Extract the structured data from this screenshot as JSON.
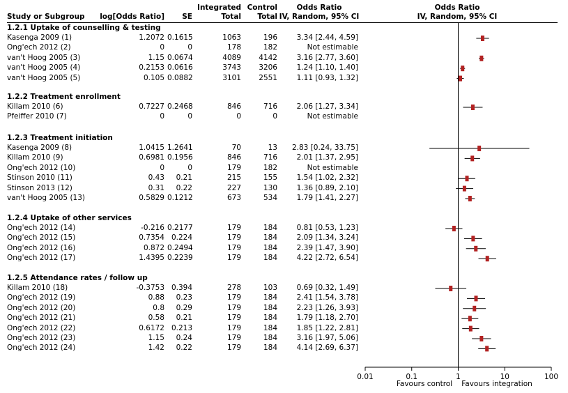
{
  "chart_data": {
    "type": "forest",
    "columns": {
      "study": "Study or Subgroup",
      "log_or": "log[Odds Ratio]",
      "se": "SE",
      "int_header": "Integrated",
      "int_total": "Total",
      "ctrl_header": "Control",
      "ctrl_total": "Total",
      "or_header": "Odds Ratio",
      "or_sub": "IV, Random, 95% CI",
      "plot_header": "Odds Ratio",
      "plot_sub": "IV, Random, 95% CI"
    },
    "axis": {
      "scale": "log",
      "min": 0.01,
      "max": 100,
      "ticks": [
        0.01,
        0.1,
        1,
        10,
        100
      ],
      "tick_labels": [
        "0.01",
        "0.1",
        "1",
        "10",
        "100"
      ],
      "left_label": "Favours control",
      "right_label": "Favours integration"
    },
    "groups": [
      {
        "title": "1.2.1 Uptake of counselling & testing",
        "studies": [
          {
            "study": "Kasenga 2009 (1)",
            "log_or": "1.2072",
            "se": "0.1615",
            "int_total": "1063",
            "ctrl_total": "196",
            "ci_text": "3.34 [2.44, 4.59]",
            "or": 3.34,
            "lo": 2.44,
            "hi": 4.59
          },
          {
            "study": "Ong'ech 2012 (2)",
            "log_or": "0",
            "se": "0",
            "int_total": "178",
            "ctrl_total": "182",
            "ci_text": "Not estimable",
            "or": null,
            "lo": null,
            "hi": null
          },
          {
            "study": "van't Hoog 2005 (3)",
            "log_or": "1.15",
            "se": "0.0674",
            "int_total": "4089",
            "ctrl_total": "4142",
            "ci_text": "3.16 [2.77, 3.60]",
            "or": 3.16,
            "lo": 2.77,
            "hi": 3.6
          },
          {
            "study": "van't Hoog 2005 (4)",
            "log_or": "0.2153",
            "se": "0.0616",
            "int_total": "3743",
            "ctrl_total": "3206",
            "ci_text": "1.24 [1.10, 1.40]",
            "or": 1.24,
            "lo": 1.1,
            "hi": 1.4
          },
          {
            "study": "van't Hoog 2005 (5)",
            "log_or": "0.105",
            "se": "0.0882",
            "int_total": "3101",
            "ctrl_total": "2551",
            "ci_text": "1.11 [0.93, 1.32]",
            "or": 1.11,
            "lo": 0.93,
            "hi": 1.32
          }
        ]
      },
      {
        "title": "1.2.2 Treatment enrollment",
        "studies": [
          {
            "study": "Killam 2010 (6)",
            "log_or": "0.7227",
            "se": "0.2468",
            "int_total": "846",
            "ctrl_total": "716",
            "ci_text": "2.06 [1.27, 3.34]",
            "or": 2.06,
            "lo": 1.27,
            "hi": 3.34
          },
          {
            "study": "Pfeiffer 2010 (7)",
            "log_or": "0",
            "se": "0",
            "int_total": "0",
            "ctrl_total": "0",
            "ci_text": "Not estimable",
            "or": null,
            "lo": null,
            "hi": null
          }
        ]
      },
      {
        "title": "1.2.3 Treatment initiation",
        "studies": [
          {
            "study": "Kasenga 2009 (8)",
            "log_or": "1.0415",
            "se": "1.2641",
            "int_total": "70",
            "ctrl_total": "13",
            "ci_text": "2.83 [0.24, 33.75]",
            "or": 2.83,
            "lo": 0.24,
            "hi": 33.75
          },
          {
            "study": "Killam 2010 (9)",
            "log_or": "0.6981",
            "se": "0.1956",
            "int_total": "846",
            "ctrl_total": "716",
            "ci_text": "2.01 [1.37, 2.95]",
            "or": 2.01,
            "lo": 1.37,
            "hi": 2.95
          },
          {
            "study": "Ong'ech 2012 (10)",
            "log_or": "0",
            "se": "0",
            "int_total": "179",
            "ctrl_total": "182",
            "ci_text": "Not estimable",
            "or": null,
            "lo": null,
            "hi": null
          },
          {
            "study": "Stinson 2010 (11)",
            "log_or": "0.43",
            "se": "0.21",
            "int_total": "215",
            "ctrl_total": "155",
            "ci_text": "1.54 [1.02, 2.32]",
            "or": 1.54,
            "lo": 1.02,
            "hi": 2.32
          },
          {
            "study": "Stinson 2013 (12)",
            "log_or": "0.31",
            "se": "0.22",
            "int_total": "227",
            "ctrl_total": "130",
            "ci_text": "1.36 [0.89, 2.10]",
            "or": 1.36,
            "lo": 0.89,
            "hi": 2.1
          },
          {
            "study": "van't Hoog 2005 (13)",
            "log_or": "0.5829",
            "se": "0.1212",
            "int_total": "673",
            "ctrl_total": "534",
            "ci_text": "1.79 [1.41, 2.27]",
            "or": 1.79,
            "lo": 1.41,
            "hi": 2.27
          }
        ]
      },
      {
        "title": "1.2.4 Uptake of other services",
        "studies": [
          {
            "study": "Ong'ech 2012 (14)",
            "log_or": "-0.216",
            "se": "0.2177",
            "int_total": "179",
            "ctrl_total": "184",
            "ci_text": "0.81 [0.53, 1.23]",
            "or": 0.81,
            "lo": 0.53,
            "hi": 1.23
          },
          {
            "study": "Ong'ech 2012 (15)",
            "log_or": "0.7354",
            "se": "0.224",
            "int_total": "179",
            "ctrl_total": "184",
            "ci_text": "2.09 [1.34, 3.24]",
            "or": 2.09,
            "lo": 1.34,
            "hi": 3.24
          },
          {
            "study": "Ong'ech 2012 (16)",
            "log_or": "0.872",
            "se": "0.2494",
            "int_total": "179",
            "ctrl_total": "184",
            "ci_text": "2.39 [1.47, 3.90]",
            "or": 2.39,
            "lo": 1.47,
            "hi": 3.9
          },
          {
            "study": "Ong'ech 2012 (17)",
            "log_or": "1.4395",
            "se": "0.2239",
            "int_total": "179",
            "ctrl_total": "184",
            "ci_text": "4.22 [2.72, 6.54]",
            "or": 4.22,
            "lo": 2.72,
            "hi": 6.54
          }
        ]
      },
      {
        "title": "1.2.5 Attendance rates / follow up",
        "studies": [
          {
            "study": "Killam 2010 (18)",
            "log_or": "-0.3753",
            "se": "0.394",
            "int_total": "278",
            "ctrl_total": "103",
            "ci_text": "0.69 [0.32, 1.49]",
            "or": 0.69,
            "lo": 0.32,
            "hi": 1.49
          },
          {
            "study": "Ong'ech 2012 (19)",
            "log_or": "0.88",
            "se": "0.23",
            "int_total": "179",
            "ctrl_total": "184",
            "ci_text": "2.41 [1.54, 3.78]",
            "or": 2.41,
            "lo": 1.54,
            "hi": 3.78
          },
          {
            "study": "Ong'ech 2012 (20)",
            "log_or": "0.8",
            "se": "0.29",
            "int_total": "179",
            "ctrl_total": "184",
            "ci_text": "2.23 [1.26, 3.93]",
            "or": 2.23,
            "lo": 1.26,
            "hi": 3.93
          },
          {
            "study": "Ong'ech 2012 (21)",
            "log_or": "0.58",
            "se": "0.21",
            "int_total": "179",
            "ctrl_total": "184",
            "ci_text": "1.79 [1.18, 2.70]",
            "or": 1.79,
            "lo": 1.18,
            "hi": 2.7
          },
          {
            "study": "Ong'ech 2012 (22)",
            "log_or": "0.6172",
            "se": "0.213",
            "int_total": "179",
            "ctrl_total": "184",
            "ci_text": "1.85 [1.22, 2.81]",
            "or": 1.85,
            "lo": 1.22,
            "hi": 2.81
          },
          {
            "study": "Ong'ech 2012 (23)",
            "log_or": "1.15",
            "se": "0.24",
            "int_total": "179",
            "ctrl_total": "184",
            "ci_text": "3.16 [1.97, 5.06]",
            "or": 3.16,
            "lo": 1.97,
            "hi": 5.06
          },
          {
            "study": "Ong'ech 2012 (24)",
            "log_or": "1.42",
            "se": "0.22",
            "int_total": "179",
            "ctrl_total": "184",
            "ci_text": "4.14 [2.69, 6.37]",
            "or": 4.14,
            "lo": 2.69,
            "hi": 6.37
          }
        ]
      }
    ]
  },
  "colors": {
    "marker": "#b22222",
    "line": "#000000",
    "text": "#000000"
  }
}
